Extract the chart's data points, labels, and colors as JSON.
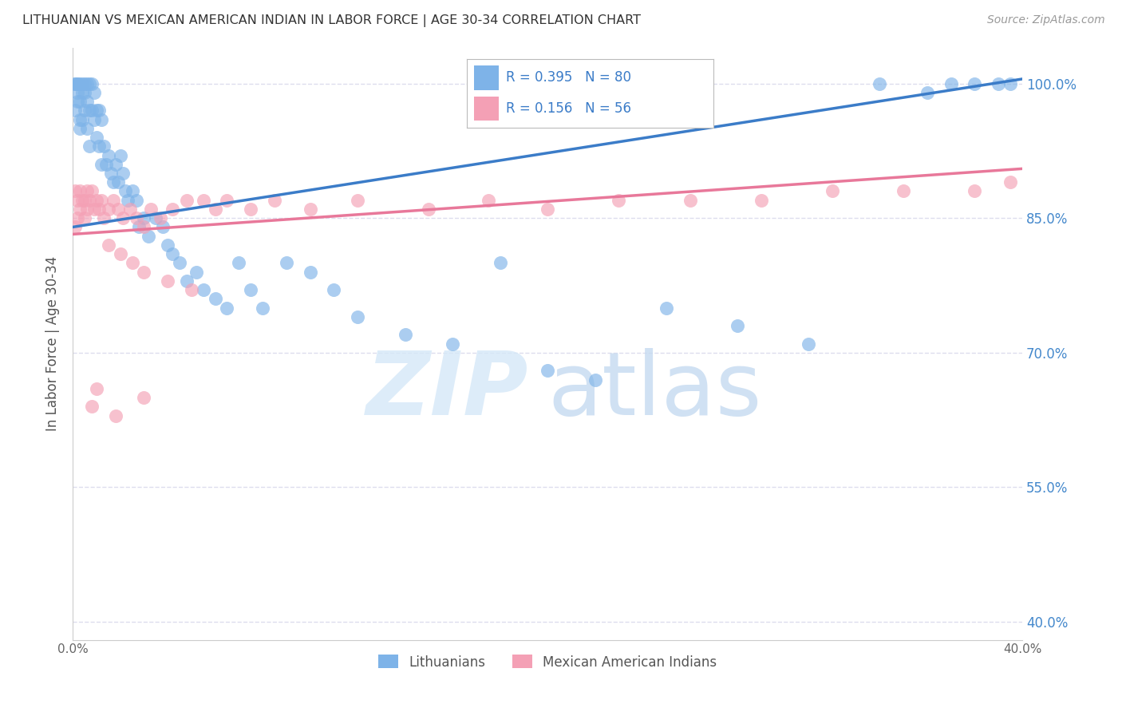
{
  "title": "LITHUANIAN VS MEXICAN AMERICAN INDIAN IN LABOR FORCE | AGE 30-34 CORRELATION CHART",
  "source": "Source: ZipAtlas.com",
  "ylabel": "In Labor Force | Age 30-34",
  "xlim": [
    0.0,
    0.4
  ],
  "ylim": [
    0.38,
    1.04
  ],
  "ytick_vals": [
    0.4,
    0.55,
    0.7,
    0.85,
    1.0
  ],
  "ytick_labels": [
    "40.0%",
    "55.0%",
    "70.0%",
    "85.0%",
    "100.0%"
  ],
  "xtick_vals": [
    0.0,
    0.05,
    0.1,
    0.15,
    0.2,
    0.25,
    0.3,
    0.35,
    0.4
  ],
  "xtick_labels": [
    "0.0%",
    "",
    "",
    "",
    "",
    "",
    "",
    "",
    "40.0%"
  ],
  "blue_R": 0.395,
  "blue_N": 80,
  "pink_R": 0.156,
  "pink_N": 56,
  "blue_label": "Lithuanians",
  "pink_label": "Mexican American Indians",
  "blue_dot_color": "#7EB3E8",
  "pink_dot_color": "#F4A0B5",
  "blue_line_color": "#3B7CC8",
  "pink_line_color": "#E8789A",
  "legend_text_color": "#3B7CC8",
  "grid_color": "#DDDDEE",
  "right_axis_color": "#4488CC",
  "watermark_zip_color": "#D5E8F8",
  "watermark_atlas_color": "#C5DAF0",
  "blue_x": [
    0.001,
    0.001,
    0.001,
    0.002,
    0.002,
    0.002,
    0.002,
    0.003,
    0.003,
    0.003,
    0.003,
    0.004,
    0.004,
    0.004,
    0.005,
    0.005,
    0.005,
    0.006,
    0.006,
    0.006,
    0.007,
    0.007,
    0.007,
    0.008,
    0.008,
    0.009,
    0.009,
    0.01,
    0.01,
    0.011,
    0.011,
    0.012,
    0.012,
    0.013,
    0.014,
    0.015,
    0.016,
    0.017,
    0.018,
    0.019,
    0.02,
    0.021,
    0.022,
    0.023,
    0.025,
    0.027,
    0.028,
    0.03,
    0.032,
    0.035,
    0.038,
    0.04,
    0.042,
    0.045,
    0.048,
    0.052,
    0.055,
    0.06,
    0.065,
    0.07,
    0.075,
    0.08,
    0.09,
    0.1,
    0.11,
    0.12,
    0.14,
    0.16,
    0.18,
    0.2,
    0.22,
    0.25,
    0.28,
    0.31,
    0.34,
    0.36,
    0.37,
    0.38,
    0.39,
    0.395
  ],
  "blue_y": [
    1.0,
    1.0,
    0.97,
    1.0,
    0.99,
    0.98,
    1.0,
    1.0,
    0.98,
    0.96,
    0.95,
    1.0,
    0.99,
    0.96,
    1.0,
    0.99,
    0.97,
    1.0,
    0.98,
    0.95,
    1.0,
    0.97,
    0.93,
    1.0,
    0.97,
    0.99,
    0.96,
    0.97,
    0.94,
    0.97,
    0.93,
    0.96,
    0.91,
    0.93,
    0.91,
    0.92,
    0.9,
    0.89,
    0.91,
    0.89,
    0.92,
    0.9,
    0.88,
    0.87,
    0.88,
    0.87,
    0.84,
    0.85,
    0.83,
    0.85,
    0.84,
    0.82,
    0.81,
    0.8,
    0.78,
    0.79,
    0.77,
    0.76,
    0.75,
    0.8,
    0.77,
    0.75,
    0.8,
    0.79,
    0.77,
    0.74,
    0.72,
    0.71,
    0.8,
    0.68,
    0.67,
    0.75,
    0.73,
    0.71,
    1.0,
    0.99,
    1.0,
    1.0,
    1.0,
    1.0
  ],
  "pink_x": [
    0.001,
    0.001,
    0.002,
    0.002,
    0.003,
    0.003,
    0.004,
    0.005,
    0.005,
    0.006,
    0.006,
    0.007,
    0.008,
    0.009,
    0.01,
    0.011,
    0.012,
    0.013,
    0.015,
    0.017,
    0.019,
    0.021,
    0.024,
    0.027,
    0.03,
    0.033,
    0.037,
    0.042,
    0.048,
    0.055,
    0.06,
    0.065,
    0.075,
    0.085,
    0.1,
    0.12,
    0.15,
    0.175,
    0.2,
    0.23,
    0.26,
    0.29,
    0.32,
    0.35,
    0.38,
    0.395,
    0.015,
    0.02,
    0.025,
    0.03,
    0.04,
    0.05,
    0.01,
    0.03,
    0.008,
    0.018
  ],
  "pink_y": [
    0.88,
    0.84,
    0.87,
    0.85,
    0.88,
    0.86,
    0.87,
    0.87,
    0.85,
    0.88,
    0.86,
    0.87,
    0.88,
    0.86,
    0.87,
    0.86,
    0.87,
    0.85,
    0.86,
    0.87,
    0.86,
    0.85,
    0.86,
    0.85,
    0.84,
    0.86,
    0.85,
    0.86,
    0.87,
    0.87,
    0.86,
    0.87,
    0.86,
    0.87,
    0.86,
    0.87,
    0.86,
    0.87,
    0.86,
    0.87,
    0.87,
    0.87,
    0.88,
    0.88,
    0.88,
    0.89,
    0.82,
    0.81,
    0.8,
    0.79,
    0.78,
    0.77,
    0.66,
    0.65,
    0.64,
    0.63
  ],
  "blue_trendline_x": [
    0.0,
    0.4
  ],
  "blue_trendline_y": [
    0.84,
    1.005
  ],
  "pink_trendline_x": [
    0.0,
    0.4
  ],
  "pink_trendline_y": [
    0.832,
    0.905
  ]
}
